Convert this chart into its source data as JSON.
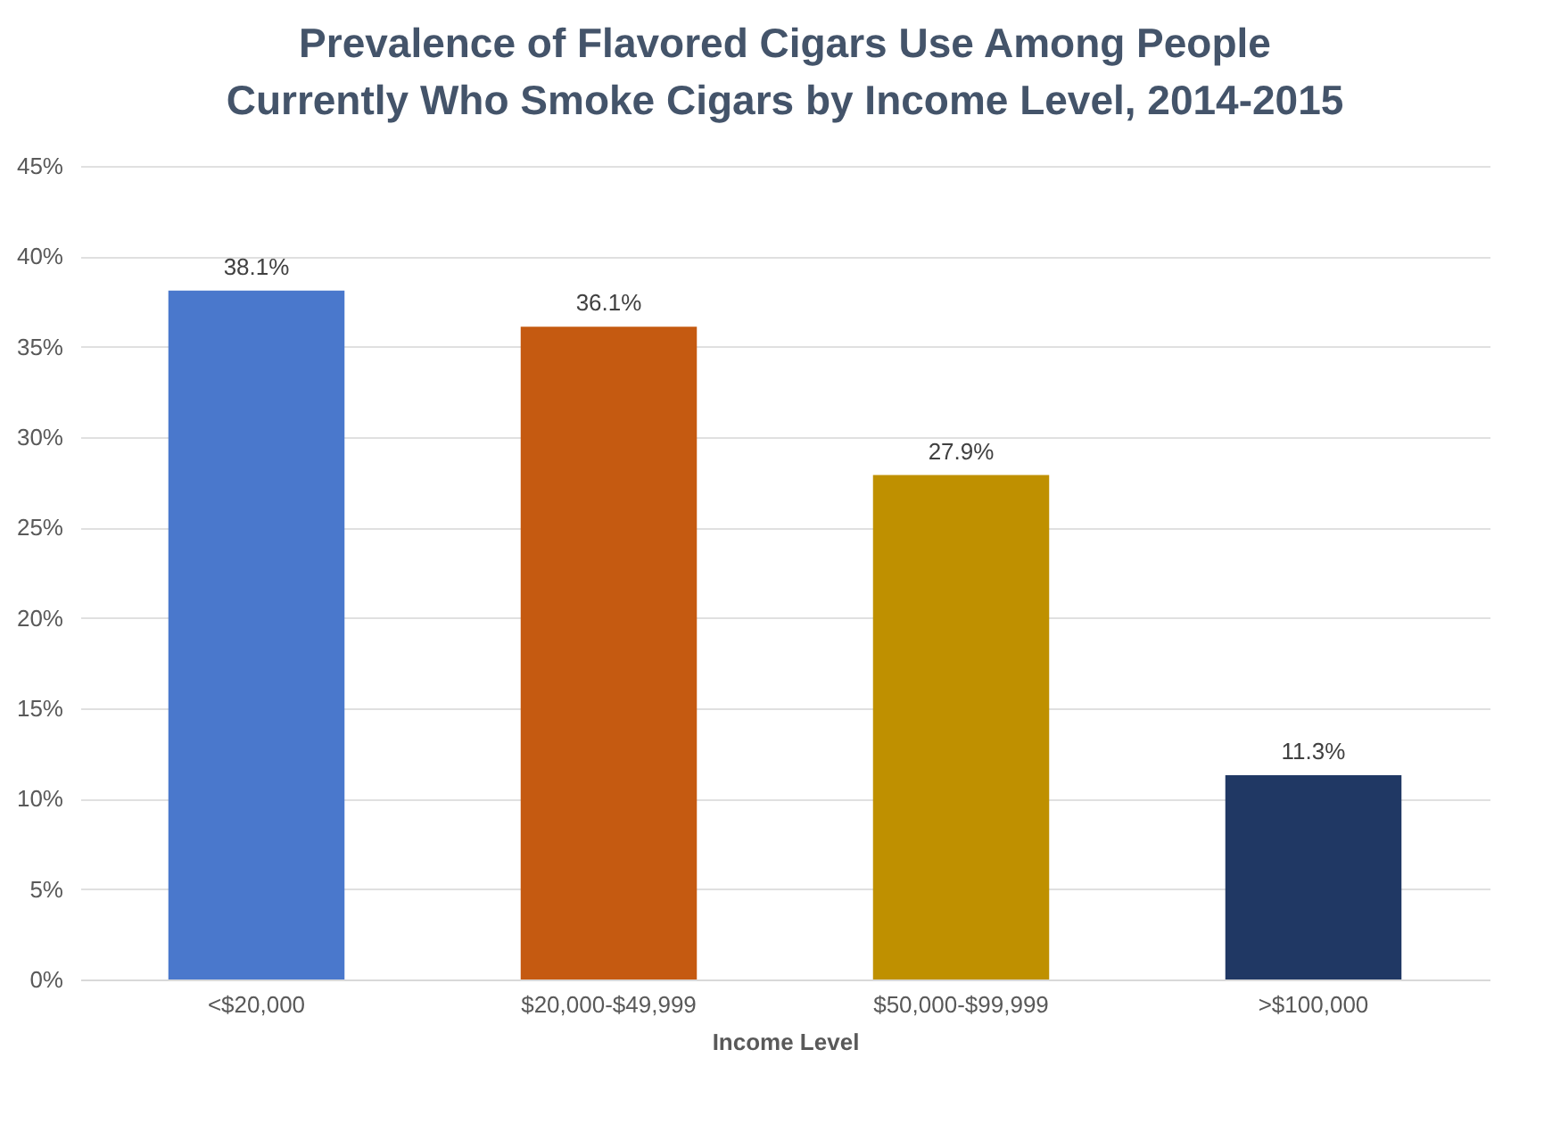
{
  "chart_data": {
    "type": "bar",
    "title": "Prevalence of Flavored Cigars Use Among People\nCurrently Who Smoke Cigars by Income Level, 2014-2015",
    "xlabel": "Income Level",
    "categories": [
      "<$20,000",
      "$20,000-$49,999",
      "$50,000-$99,999",
      ">$100,000"
    ],
    "values": [
      38.1,
      36.1,
      27.9,
      11.3
    ],
    "value_labels": [
      "38.1%",
      "36.1%",
      "27.9%",
      "11.3%"
    ],
    "colors": [
      "#4a78cc",
      "#c55a11",
      "#bf9000",
      "#203864"
    ],
    "ylim": [
      0,
      45
    ],
    "yticks": [
      {
        "value": 0,
        "label": "0%"
      },
      {
        "value": 5,
        "label": "5%"
      },
      {
        "value": 10,
        "label": "10%"
      },
      {
        "value": 15,
        "label": "15%"
      },
      {
        "value": 20,
        "label": "20%"
      },
      {
        "value": 25,
        "label": "25%"
      },
      {
        "value": 30,
        "label": "30%"
      },
      {
        "value": 35,
        "label": "35%"
      },
      {
        "value": 40,
        "label": "40%"
      },
      {
        "value": 45,
        "label": "45%"
      }
    ],
    "grid": "y"
  }
}
